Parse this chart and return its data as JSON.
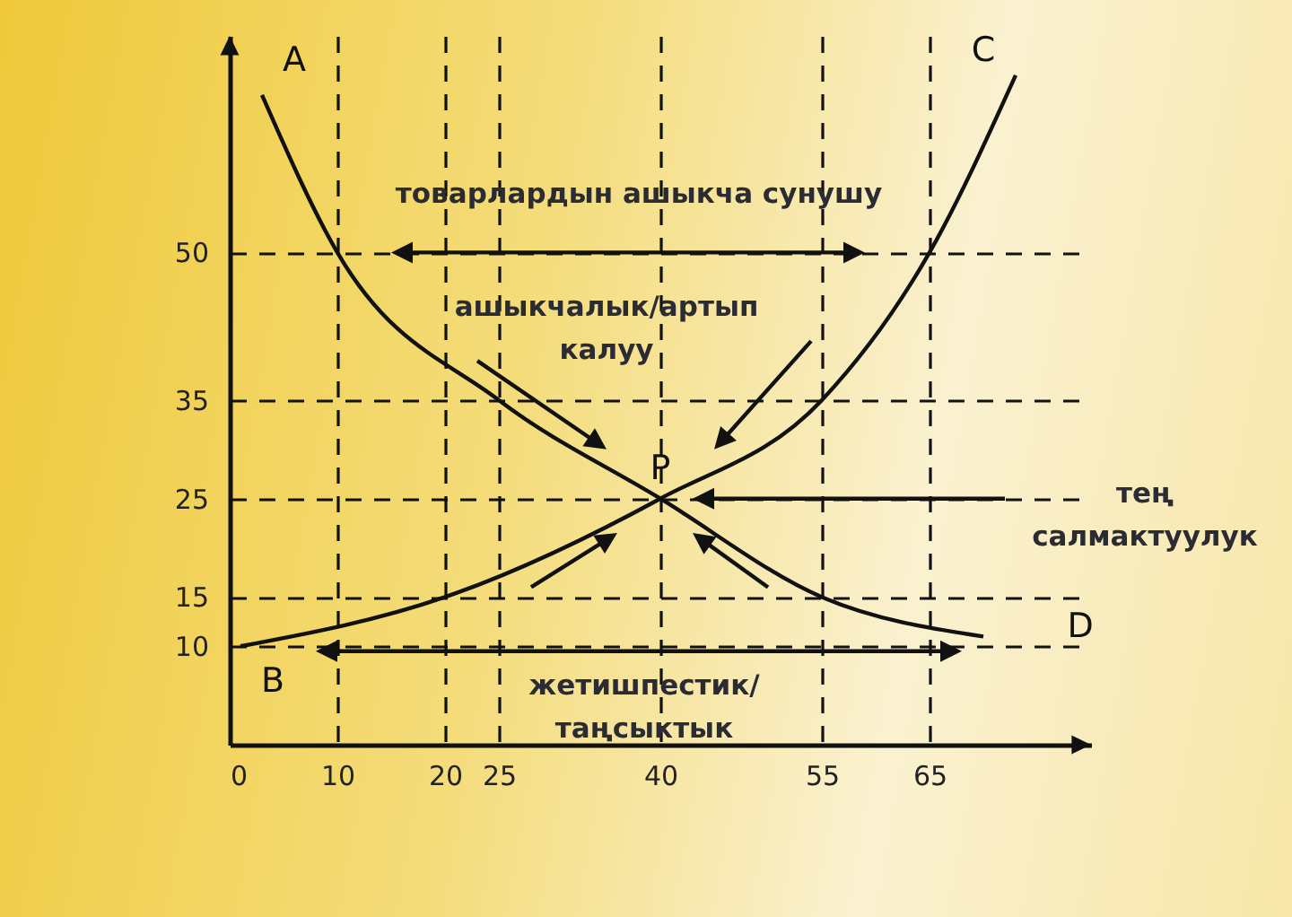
{
  "chart_data": {
    "type": "line",
    "xlim": [
      0,
      80
    ],
    "ylim": [
      0,
      72
    ],
    "xticks": [
      0,
      10,
      20,
      25,
      40,
      55,
      65
    ],
    "yticks": [
      10,
      15,
      25,
      35,
      50
    ],
    "grid": true,
    "marker": "none",
    "line_style": "solid",
    "series": [
      {
        "color": "#111111",
        "x": [
          3,
          10,
          25,
          40,
          55,
          70
        ],
        "values": [
          66,
          50,
          35,
          25,
          15,
          11
        ]
      },
      {
        "color": "#111111",
        "x": [
          1,
          20,
          40,
          55,
          65,
          73
        ],
        "values": [
          10,
          15,
          25,
          35,
          50,
          68
        ]
      }
    ],
    "annotations": [
      "товарлардын ашыкча сунушу",
      "ашыкчалык/артып калуу",
      "тең салмактуулук",
      "жетишпестик/ таңсыктык",
      "A",
      "B",
      "C",
      "D",
      {
        "text": "P",
        "x": 40,
        "y": 25
      }
    ]
  }
}
